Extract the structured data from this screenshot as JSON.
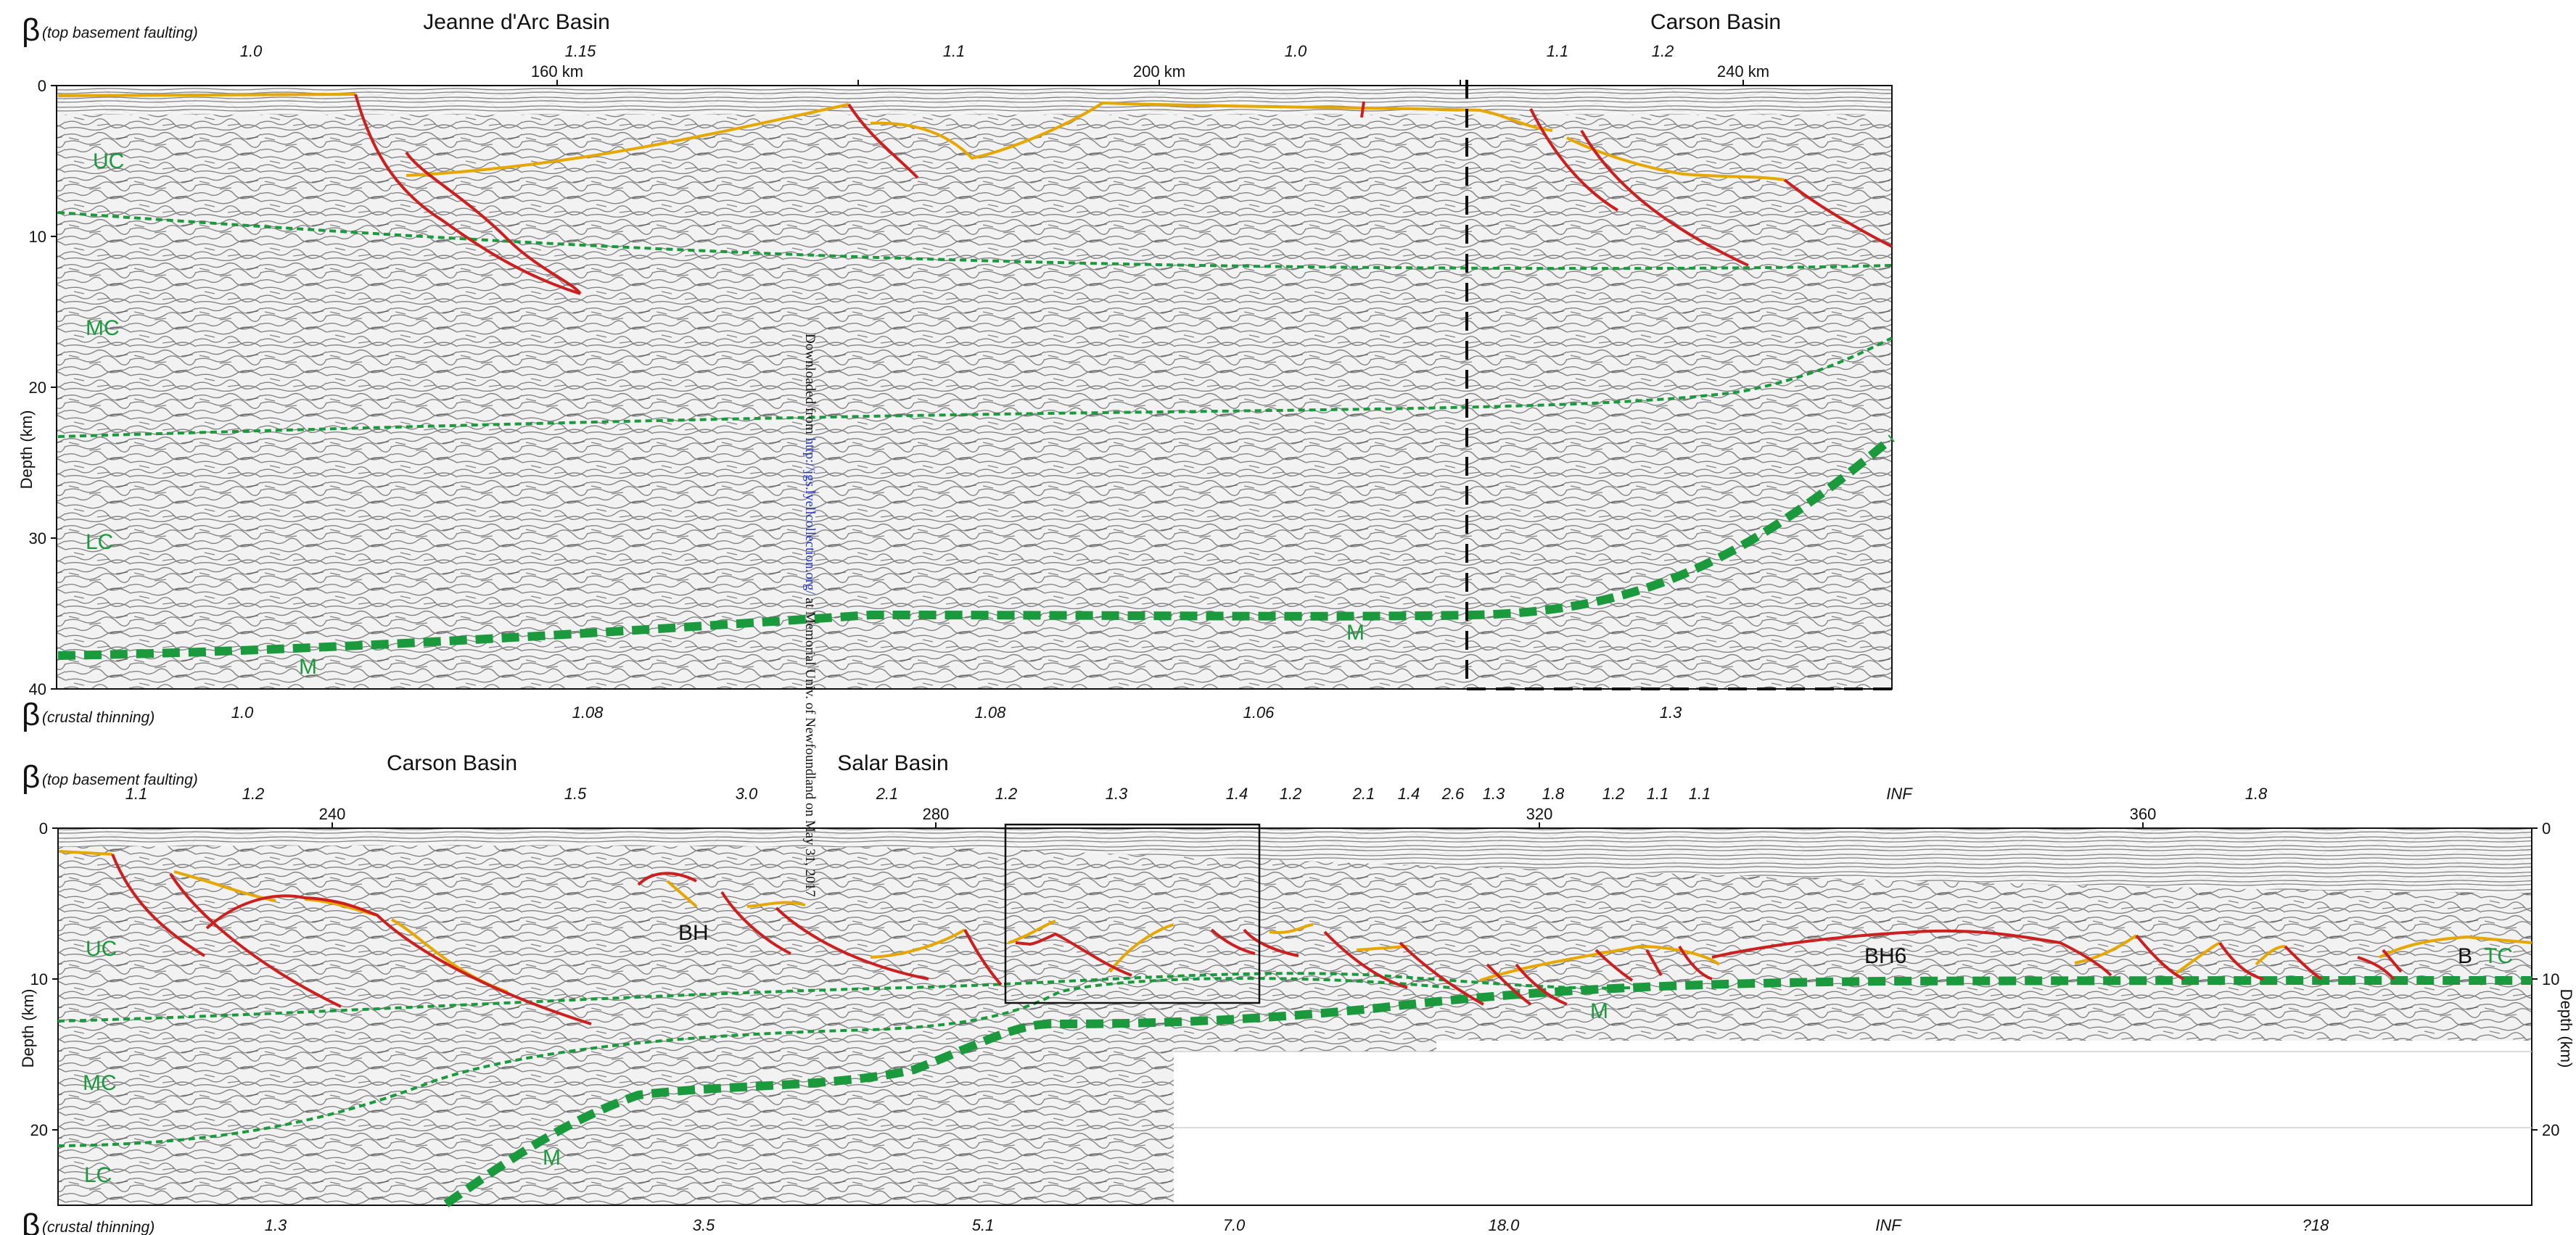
{
  "panel1": {
    "beta_top_label": "(top basement faulting)",
    "beta_bottom_label": "(crustal thinning)",
    "basins": [
      "Jeanne d'Arc Basin",
      "Carson Basin"
    ],
    "beta_top_values": [
      "1.0",
      "1.15",
      "1.1",
      "1.0",
      "1.1",
      "1.2"
    ],
    "km_labels": [
      "160 km",
      "200 km",
      "240 km"
    ],
    "depth_ticks": [
      "0",
      "10",
      "20",
      "30",
      "40"
    ],
    "depth_axis_label": "Depth (km)",
    "layer_labels": [
      "UC",
      "MC",
      "LC"
    ],
    "moho_labels": [
      "M",
      "M"
    ],
    "beta_bottom_values": [
      "1.0",
      "1.08",
      "1.08",
      "1.06",
      "1.3"
    ]
  },
  "panel2": {
    "beta_top_label": "(top basement faulting)",
    "beta_bottom_label": "(crustal thinning)",
    "basins": [
      "Carson Basin",
      "Salar Basin"
    ],
    "beta_top_values": [
      "1.1",
      "1.2",
      "1.5",
      "3.0",
      "2.1",
      "1.2",
      "1.3",
      "1.4",
      "1.2",
      "2.1",
      "1.4",
      "2.6",
      "1.3",
      "1.8",
      "1.2",
      "1.1",
      "1.1",
      "INF",
      "1.8"
    ],
    "km_labels": [
      "240",
      "280",
      "320",
      "360"
    ],
    "depth_ticks": [
      "0",
      "10",
      "20"
    ],
    "depth_axis_label": "Depth (km)",
    "layer_labels": [
      "UC",
      "MC",
      "LC"
    ],
    "feature_labels": [
      "BH",
      "BH6",
      "B",
      "TC"
    ],
    "moho_labels": [
      "M",
      "M"
    ],
    "beta_bottom_values": [
      "1.3",
      "3.5",
      "5.1",
      "7.0",
      "18.0",
      "INF",
      "?18"
    ]
  },
  "watermark": {
    "prefix": "Downloaded from ",
    "link": "http://jgs.lyellcollection.org/",
    "suffix": " at Memorial Univ. of Newfoundland on May 31, 2017"
  },
  "beta_symbol": "β",
  "colors": {
    "fault": "#cc1f1f",
    "basement": "#e6a700",
    "boundary": "#1a9a3c",
    "seismic": "#9a9a9a"
  }
}
